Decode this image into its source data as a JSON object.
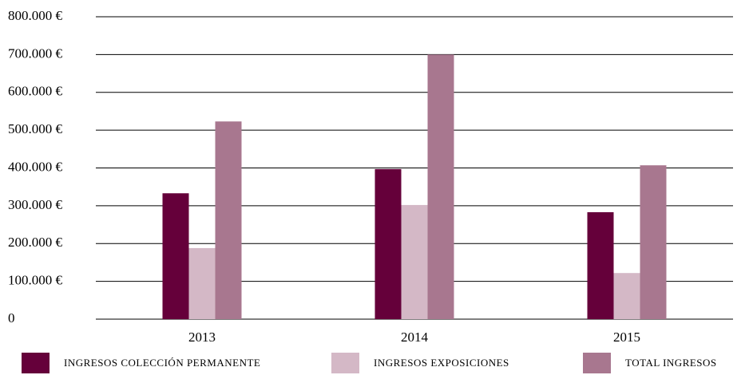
{
  "chart_data": {
    "type": "bar",
    "categories": [
      "2013",
      "2014",
      "2015"
    ],
    "series": [
      {
        "name": "INGRESOS COLECCIÓN PERMANENTE",
        "color": "#65003a",
        "values": [
          333000,
          397000,
          283000
        ]
      },
      {
        "name": "INGRESOS EXPOSICIONES",
        "color": "#d4b8c6",
        "values": [
          188000,
          302000,
          122000
        ]
      },
      {
        "name": "TOTAL INGRESOS",
        "color": "#a8778f",
        "values": [
          523000,
          700000,
          407000
        ]
      }
    ],
    "ylim": [
      0,
      800000
    ],
    "yticks": [
      0,
      {
        "value": 100000,
        "label": "100.000 €"
      },
      {
        "value": 200000,
        "label": "200.000 €"
      },
      {
        "value": 300000,
        "label": "300.000 €"
      },
      {
        "value": 400000,
        "label": "400.000 €"
      },
      {
        "value": 500000,
        "label": "500.000 €"
      },
      {
        "value": 600000,
        "label": "600.000 €"
      },
      {
        "value": 700000,
        "label": "700.000 €"
      },
      {
        "value": 800000,
        "label": "800.000 €"
      }
    ],
    "grid": true,
    "legend": "bottom"
  }
}
